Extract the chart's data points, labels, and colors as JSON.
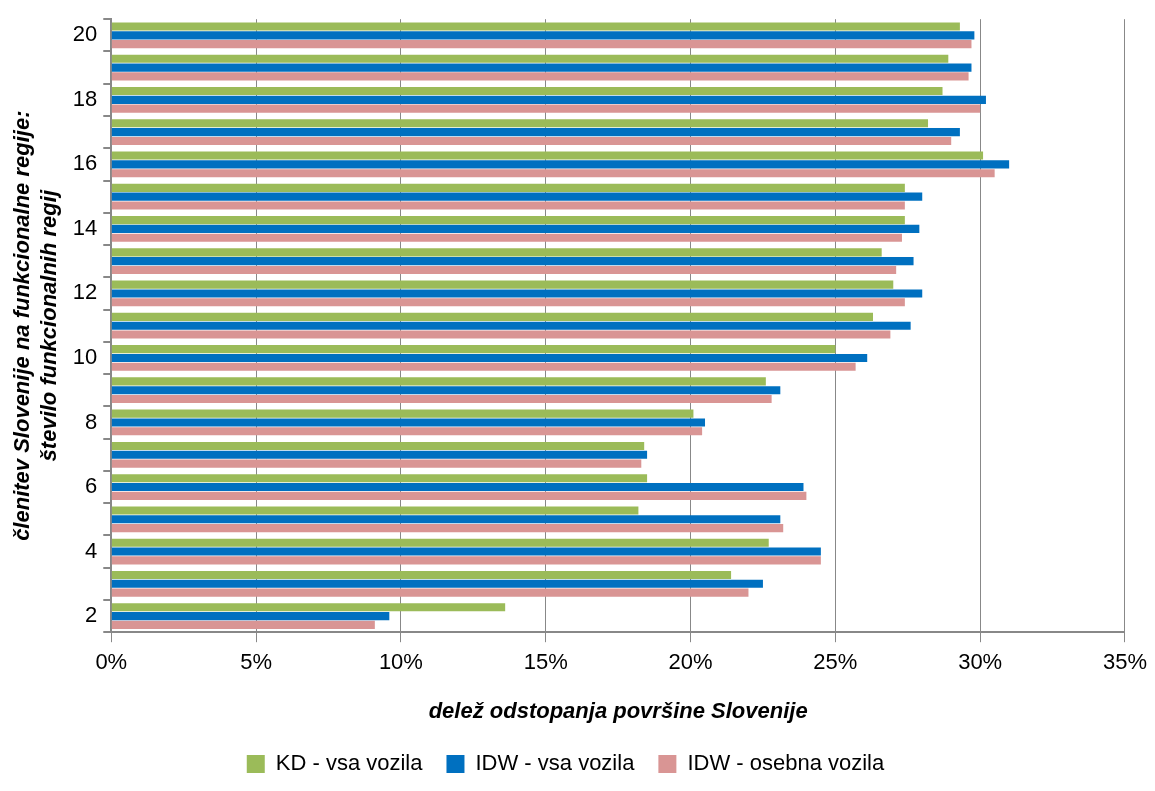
{
  "chart_data": {
    "type": "bar",
    "orientation": "horizontal",
    "xlabel": "delež odstopanja površine Slovenije",
    "ylabel": "členitev Slovenije na funkcionalne regije:\nštevilo funkcionalnih regij",
    "categories": [
      "20",
      null,
      "18",
      null,
      "16",
      null,
      "14",
      null,
      "12",
      null,
      "10",
      null,
      "8",
      null,
      "6",
      null,
      "4",
      null,
      "2"
    ],
    "series": [
      {
        "name": "KD - vsa vozila",
        "color": "#9bbb59",
        "values": [
          29.3,
          28.9,
          28.7,
          28.2,
          30.1,
          27.4,
          27.4,
          26.6,
          27.0,
          26.3,
          25.0,
          22.6,
          20.1,
          18.4,
          18.5,
          18.2,
          22.7,
          21.4,
          13.6
        ]
      },
      {
        "name": "IDW - vsa vozila",
        "color": "#0070c0",
        "values": [
          29.8,
          29.7,
          30.2,
          29.3,
          31.0,
          28.0,
          27.9,
          27.7,
          28.0,
          27.6,
          26.1,
          23.1,
          20.5,
          18.5,
          23.9,
          23.1,
          24.5,
          22.5,
          9.6
        ]
      },
      {
        "name": "IDW - osebna vozila",
        "color": "#d99594",
        "values": [
          29.7,
          29.6,
          30.0,
          29.0,
          30.5,
          27.4,
          27.3,
          27.1,
          27.4,
          26.9,
          25.7,
          22.8,
          20.4,
          18.3,
          24.0,
          23.2,
          24.5,
          22.0,
          9.1
        ]
      }
    ],
    "xlim": [
      0,
      35
    ],
    "xticks": [
      {
        "value": 0,
        "label": "0%"
      },
      {
        "value": 5,
        "label": "5%"
      },
      {
        "value": 10,
        "label": "10%"
      },
      {
        "value": 15,
        "label": "15%"
      },
      {
        "value": 20,
        "label": "20%"
      },
      {
        "value": 25,
        "label": "25%"
      },
      {
        "value": 30,
        "label": "30%"
      },
      {
        "value": 35,
        "label": "35%"
      }
    ],
    "grid": "x",
    "legend": "bottom"
  }
}
